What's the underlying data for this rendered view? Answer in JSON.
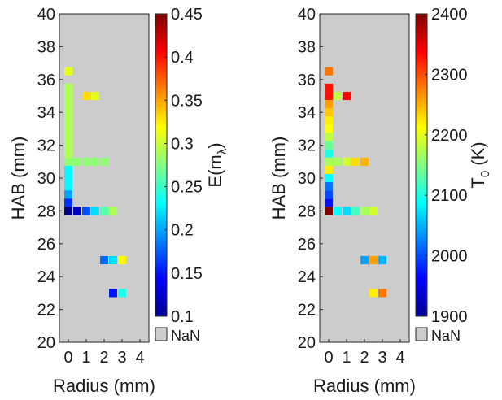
{
  "chart_data": [
    {
      "type": "heatmap",
      "xlabel": "Radius (mm)",
      "ylabel": "HAB (mm)",
      "xlim": [
        -0.5,
        4.5
      ],
      "ylim": [
        20,
        40
      ],
      "x_ticks": [
        "0",
        "1",
        "2",
        "3",
        "4"
      ],
      "y_ticks": [
        "20",
        "22",
        "24",
        "26",
        "28",
        "30",
        "32",
        "34",
        "36",
        "38",
        "40"
      ],
      "colormap": "jet",
      "colorbar": {
        "label": "E(m",
        "label_subscript": "λ",
        "label_suffix": ")",
        "range": [
          0.1,
          0.45
        ],
        "ticks": [
          "0.45",
          "0.4",
          "0.35",
          "0.3",
          "0.25",
          "0.2",
          "0.15",
          "0.1"
        ],
        "nan_label": "NaN",
        "nan_color": "#cccccc"
      },
      "cells": [
        {
          "x": 0,
          "y": 36.5,
          "v": 0.31
        },
        {
          "x": 0,
          "y": 35.5,
          "v": 0.29
        },
        {
          "x": 0,
          "y": 35.0,
          "v": 0.29
        },
        {
          "x": 1,
          "y": 35.0,
          "v": 0.33
        },
        {
          "x": 1.5,
          "y": 35.0,
          "v": 0.31
        },
        {
          "x": 0,
          "y": 34.5,
          "v": 0.29
        },
        {
          "x": 0,
          "y": 34.0,
          "v": 0.29
        },
        {
          "x": 0,
          "y": 33.5,
          "v": 0.29
        },
        {
          "x": 0,
          "y": 33.0,
          "v": 0.29
        },
        {
          "x": 0,
          "y": 32.5,
          "v": 0.29
        },
        {
          "x": 0,
          "y": 32.0,
          "v": 0.29
        },
        {
          "x": 0,
          "y": 31.5,
          "v": 0.29
        },
        {
          "x": 0,
          "y": 31.0,
          "v": 0.28
        },
        {
          "x": 0.5,
          "y": 31.0,
          "v": 0.28
        },
        {
          "x": 1,
          "y": 31.0,
          "v": 0.28
        },
        {
          "x": 1.5,
          "y": 31.0,
          "v": 0.28
        },
        {
          "x": 2,
          "y": 31.0,
          "v": 0.28
        },
        {
          "x": 0,
          "y": 30.5,
          "v": 0.23
        },
        {
          "x": 0,
          "y": 30.0,
          "v": 0.23
        },
        {
          "x": 0,
          "y": 29.5,
          "v": 0.23
        },
        {
          "x": 0,
          "y": 29.0,
          "v": 0.2
        },
        {
          "x": 0,
          "y": 28.5,
          "v": 0.16
        },
        {
          "x": 0,
          "y": 28.0,
          "v": 0.1
        },
        {
          "x": 0.5,
          "y": 28.0,
          "v": 0.12
        },
        {
          "x": 1,
          "y": 28.0,
          "v": 0.17
        },
        {
          "x": 1.5,
          "y": 28.0,
          "v": 0.22
        },
        {
          "x": 2,
          "y": 28.0,
          "v": 0.26
        },
        {
          "x": 2.5,
          "y": 28.0,
          "v": 0.29
        },
        {
          "x": 2,
          "y": 25.0,
          "v": 0.18
        },
        {
          "x": 2.5,
          "y": 25.0,
          "v": 0.22
        },
        {
          "x": 3,
          "y": 25.0,
          "v": 0.32
        },
        {
          "x": 2.5,
          "y": 23.0,
          "v": 0.15
        },
        {
          "x": 3,
          "y": 23.0,
          "v": 0.24
        }
      ]
    },
    {
      "type": "heatmap",
      "xlabel": "Radius (mm)",
      "ylabel": "HAB (mm)",
      "xlim": [
        -0.5,
        4.5
      ],
      "ylim": [
        20,
        40
      ],
      "x_ticks": [
        "0",
        "1",
        "2",
        "3",
        "4"
      ],
      "y_ticks": [
        "20",
        "22",
        "24",
        "26",
        "28",
        "30",
        "32",
        "34",
        "36",
        "38",
        "40"
      ],
      "colormap": "jet",
      "colorbar": {
        "label": "T",
        "label_subscript": "0",
        "label_suffix": " (K)",
        "range": [
          1900,
          2400
        ],
        "ticks": [
          "2400",
          "2300",
          "2200",
          "2100",
          "2000",
          "1900"
        ],
        "nan_label": "NaN",
        "nan_color": "#cccccc"
      },
      "cells": [
        {
          "x": 0,
          "y": 36.5,
          "v": 2280
        },
        {
          "x": 0,
          "y": 35.5,
          "v": 2330
        },
        {
          "x": 0,
          "y": 35.0,
          "v": 2330
        },
        {
          "x": 0.5,
          "y": 35.0,
          "v": 2180
        },
        {
          "x": 1,
          "y": 35.0,
          "v": 2340
        },
        {
          "x": 0,
          "y": 34.5,
          "v": 2260
        },
        {
          "x": 0,
          "y": 34.0,
          "v": 2240
        },
        {
          "x": 0,
          "y": 33.5,
          "v": 2220
        },
        {
          "x": 0,
          "y": 33.0,
          "v": 2210
        },
        {
          "x": 0,
          "y": 32.5,
          "v": 2180
        },
        {
          "x": 0,
          "y": 32.0,
          "v": 2140
        },
        {
          "x": 0,
          "y": 31.5,
          "v": 2100
        },
        {
          "x": 0,
          "y": 31.0,
          "v": 2170
        },
        {
          "x": 0.5,
          "y": 31.0,
          "v": 2170
        },
        {
          "x": 1,
          "y": 31.0,
          "v": 2190
        },
        {
          "x": 1.5,
          "y": 31.0,
          "v": 2230
        },
        {
          "x": 2,
          "y": 31.0,
          "v": 2250
        },
        {
          "x": 0,
          "y": 30.5,
          "v": 2220
        },
        {
          "x": 0,
          "y": 30.0,
          "v": 2090
        },
        {
          "x": 0,
          "y": 29.5,
          "v": 2020
        },
        {
          "x": 0,
          "y": 29.0,
          "v": 2000
        },
        {
          "x": 0,
          "y": 28.5,
          "v": 1970
        },
        {
          "x": 0,
          "y": 28.0,
          "v": 2400
        },
        {
          "x": 0.5,
          "y": 28.0,
          "v": 2090
        },
        {
          "x": 1,
          "y": 28.0,
          "v": 2070
        },
        {
          "x": 1.5,
          "y": 28.0,
          "v": 2120
        },
        {
          "x": 2,
          "y": 28.0,
          "v": 2170
        },
        {
          "x": 2.5,
          "y": 28.0,
          "v": 2190
        },
        {
          "x": 2,
          "y": 25.0,
          "v": 2040
        },
        {
          "x": 2.5,
          "y": 25.0,
          "v": 2260
        },
        {
          "x": 3,
          "y": 25.0,
          "v": 2050
        },
        {
          "x": 2.5,
          "y": 23.0,
          "v": 2220
        },
        {
          "x": 3,
          "y": 23.0,
          "v": 2280
        }
      ]
    }
  ]
}
